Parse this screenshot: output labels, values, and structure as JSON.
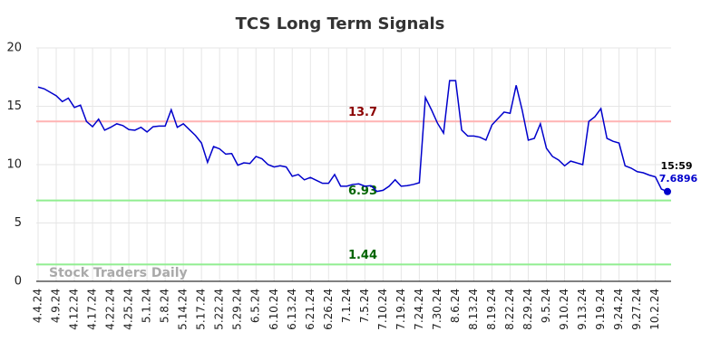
{
  "chart_data": {
    "type": "line",
    "title": "TCS Long Term Signals",
    "watermark": "Stock Traders Daily",
    "last_time": "15:59",
    "color": "#0000cc",
    "ylim": [
      0,
      20
    ],
    "yticks": [
      0,
      5,
      10,
      15,
      20
    ],
    "grid": true,
    "reference_lines": [
      {
        "value": 13.7,
        "color": "#ffb3b3",
        "label_color": "#8b0000"
      },
      {
        "value": 6.93,
        "color": "#90ee90",
        "label_color": "#006400"
      },
      {
        "value": 1.44,
        "color": "#90ee90",
        "label_color": "#006400"
      }
    ],
    "categories": [
      "4.4.24",
      null,
      null,
      "4.9.24",
      null,
      null,
      "4.12.24",
      null,
      null,
      "4.17.24",
      null,
      null,
      "4.22.24",
      null,
      null,
      "4.25.24",
      null,
      null,
      "5.1.24",
      null,
      null,
      "5.8.24",
      null,
      null,
      "5.14.24",
      null,
      null,
      "5.17.24",
      null,
      null,
      "5.22.24",
      null,
      null,
      "5.29.24",
      null,
      null,
      "6.5.24",
      null,
      null,
      "6.10.24",
      null,
      null,
      "6.13.24",
      null,
      null,
      "6.21.24",
      null,
      null,
      "6.26.24",
      null,
      null,
      "7.1.24",
      null,
      null,
      "7.5.24",
      null,
      null,
      "7.10.24",
      null,
      null,
      "7.19.24",
      null,
      null,
      "7.24.24",
      null,
      null,
      "7.30.24",
      null,
      null,
      "8.6.24",
      null,
      null,
      "8.13.24",
      null,
      null,
      "8.19.24",
      null,
      null,
      "8.22.24",
      null,
      null,
      "8.29.24",
      null,
      null,
      "9.5.24",
      null,
      null,
      "9.10.24",
      null,
      null,
      "9.13.24",
      null,
      null,
      "9.19.24",
      null,
      null,
      "9.24.24",
      null,
      null,
      "9.27.24",
      null,
      null,
      "10.2.24",
      null,
      null
    ],
    "values": [
      16.65,
      16.5,
      16.2,
      15.9,
      15.4,
      15.7,
      14.9,
      15.1,
      13.7,
      13.25,
      13.9,
      12.95,
      13.2,
      13.5,
      13.35,
      13.0,
      12.95,
      13.2,
      12.8,
      13.25,
      13.3,
      13.3,
      14.7,
      13.2,
      13.5,
      13.0,
      12.5,
      11.85,
      10.2,
      11.55,
      11.35,
      10.9,
      10.95,
      9.95,
      10.15,
      10.1,
      10.7,
      10.5,
      10.0,
      9.8,
      9.9,
      9.8,
      9.0,
      9.15,
      8.7,
      8.9,
      8.65,
      8.4,
      8.4,
      9.15,
      8.15,
      8.15,
      8.3,
      8.35,
      8.15,
      8.2,
      7.7,
      7.8,
      8.15,
      8.7,
      8.15,
      8.2,
      8.3,
      8.45,
      15.75,
      14.7,
      13.55,
      12.7,
      17.2,
      17.2,
      12.95,
      12.45,
      12.45,
      12.35,
      12.1,
      13.4,
      13.95,
      14.5,
      14.4,
      16.8,
      14.65,
      12.1,
      12.25,
      13.5,
      11.4,
      10.7,
      10.4,
      9.9,
      10.3,
      10.15,
      10.0,
      13.7,
      14.1,
      14.8,
      12.25,
      12.0,
      11.85,
      9.9,
      9.7,
      9.4,
      9.3,
      9.1,
      8.95,
      7.9,
      7.6896
    ]
  }
}
